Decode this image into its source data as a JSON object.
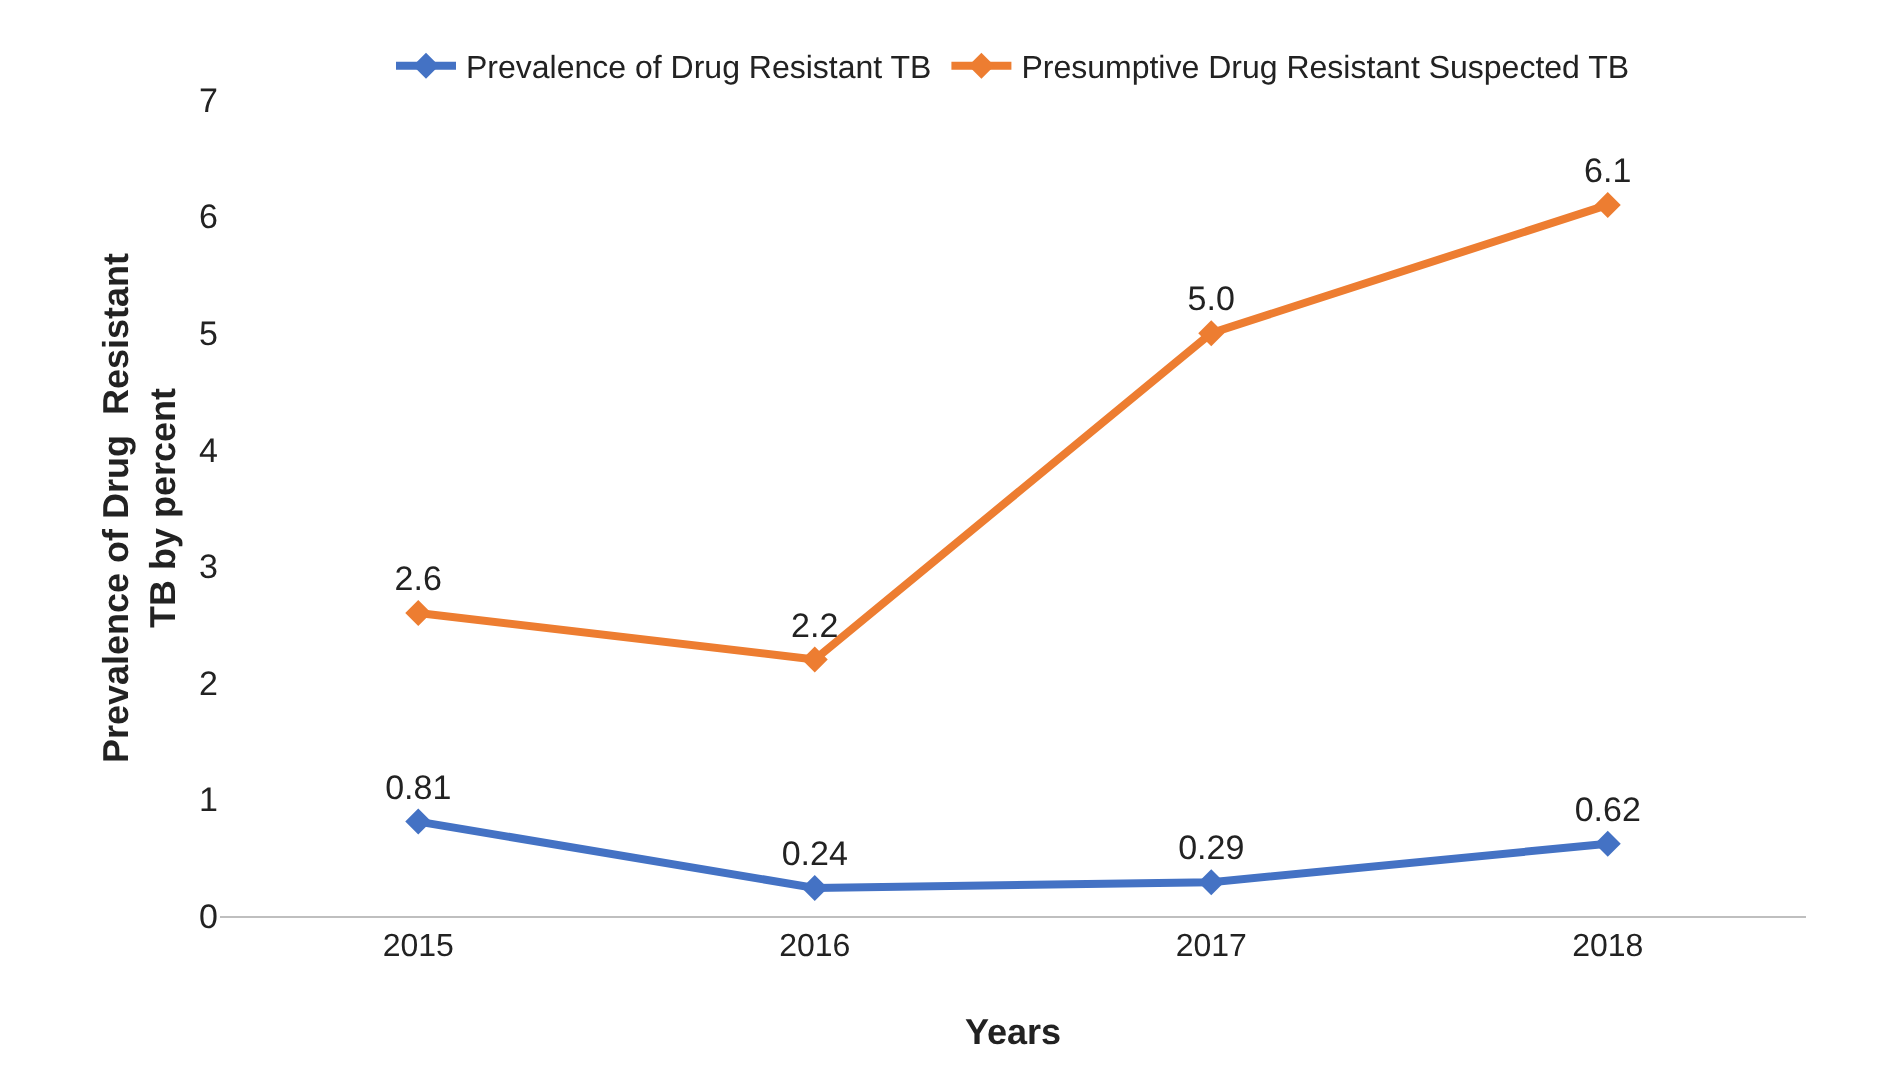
{
  "chart_data": {
    "type": "line",
    "xlabel": "Years",
    "ylabel": "Prevalence of Drug  Resistant\nTB by percent",
    "categories": [
      "2015",
      "2016",
      "2017",
      "2018"
    ],
    "series": [
      {
        "name": "Prevalence of Drug Resistant TB",
        "color": "#4472c4",
        "values": [
          0.81,
          0.24,
          0.29,
          0.62
        ],
        "value_labels": [
          "0.81",
          "0.24",
          "0.29",
          "0.62"
        ]
      },
      {
        "name": "Presumptive Drug Resistant Suspected TB",
        "color": "#ed7d31",
        "values": [
          2.6,
          2.2,
          5.0,
          6.1
        ],
        "value_labels": [
          "2.6",
          "2.2",
          "5.0",
          "6.1"
        ]
      }
    ],
    "ylim": [
      0,
      7
    ],
    "yticks": [
      0,
      1,
      2,
      3,
      4,
      5,
      6,
      7
    ],
    "grid": false,
    "legend": "top",
    "marker": "diamond",
    "line_style": "solid"
  }
}
